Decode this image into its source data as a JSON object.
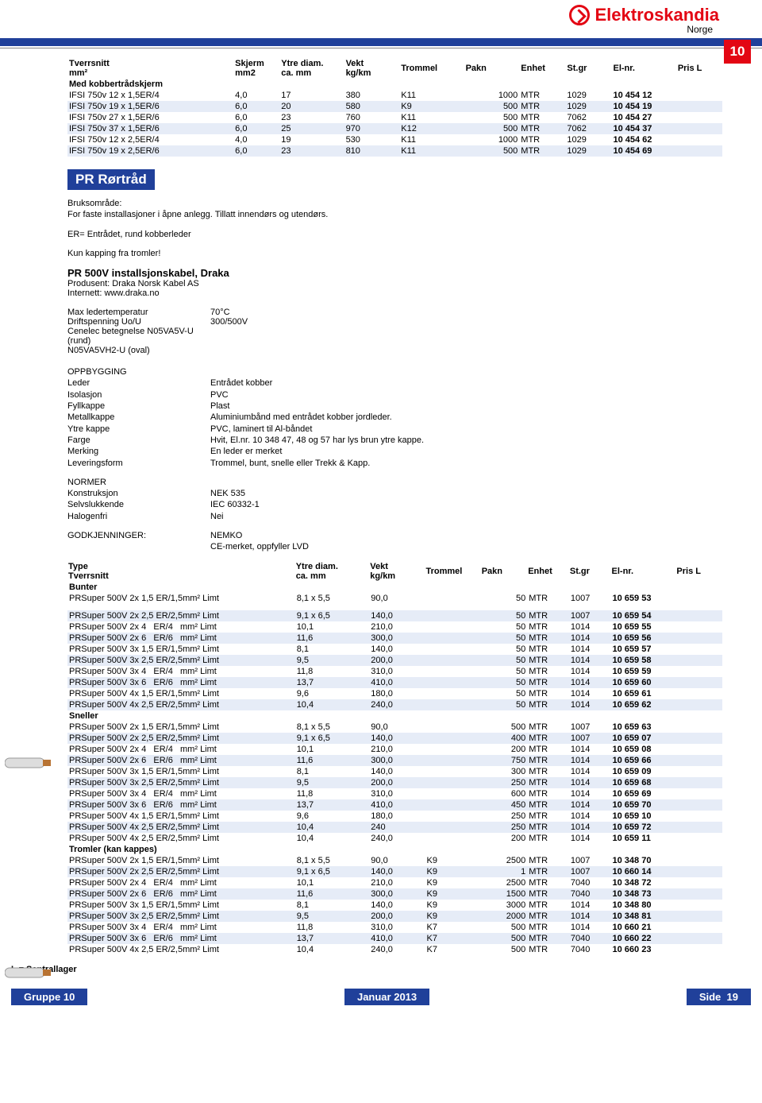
{
  "brand": {
    "name": "Elektroskandia",
    "region": "Norge"
  },
  "page_badge": "10",
  "footer": {
    "left": "Gruppe 10",
    "center": "Januar 2013",
    "right": "Side",
    "right_num": "19",
    "sentr": "L = Sentrallager"
  },
  "table1": {
    "headers": [
      "Tverrsnitt\nmm²",
      "Skjerm\nmm2",
      "Ytre diam.\nca. mm",
      "Vekt\nkg/km",
      "Trommel",
      "Pakn",
      "Enhet",
      "St.gr",
      "El-nr.",
      "Pris L"
    ],
    "section_label": "Med kobbertrådskjerm",
    "rows": [
      {
        "t": "IFSI 750v 12 x 1,5ER/4",
        "s": "4,0",
        "d": "17",
        "v": "380",
        "tr": "K11",
        "p": "1000",
        "e": "MTR",
        "sg": "1029",
        "el": "10 454 12",
        "alt": false
      },
      {
        "t": "IFSI 750v 19 x 1,5ER/6",
        "s": "6,0",
        "d": "20",
        "v": "580",
        "tr": "K9",
        "p": "500",
        "e": "MTR",
        "sg": "1029",
        "el": "10 454 19",
        "alt": true
      },
      {
        "t": "IFSI 750v 27 x 1,5ER/6",
        "s": "6,0",
        "d": "23",
        "v": "760",
        "tr": "K11",
        "p": "500",
        "e": "MTR",
        "sg": "7062",
        "el": "10 454 27",
        "alt": false
      },
      {
        "t": "IFSI 750v 37 x 1,5ER/6",
        "s": "6,0",
        "d": "25",
        "v": "970",
        "tr": "K12",
        "p": "500",
        "e": "MTR",
        "sg": "7062",
        "el": "10 454 37",
        "alt": true
      },
      {
        "t": "IFSI 750v 12 x 2,5ER/4",
        "s": "4,0",
        "d": "19",
        "v": "530",
        "tr": "K11",
        "p": "1000",
        "e": "MTR",
        "sg": "1029",
        "el": "10 454 62",
        "alt": false
      },
      {
        "t": "IFSI 750v 19 x 2,5ER/6",
        "s": "6,0",
        "d": "23",
        "v": "810",
        "tr": "K11",
        "p": "500",
        "e": "MTR",
        "sg": "1029",
        "el": "10 454 69",
        "alt": true
      }
    ]
  },
  "section2": {
    "title": "PR Rørtråd",
    "bruks_label": "Bruksområde:",
    "bruks_text": "For faste installasjoner i åpne anlegg. Tillatt innendørs og utendørs.",
    "er_text": "ER= Entrådet, rund kobberleder",
    "kapping": "Kun kapping fra tromler!",
    "sub_title": "PR 500V installsjonskabel, Draka",
    "prod_label": "Produsent:",
    "prod_val": "Draka Norsk Kabel AS",
    "int_label": "Internett:",
    "int_val": "www.draka.no",
    "specs": [
      {
        "l": "Max ledertemperatur",
        "v": "70°C"
      },
      {
        "l": "Driftspenning Uo/U",
        "v": "300/500V"
      },
      {
        "l": "Cenelec betegnelse N05VA5V-U (rund)",
        "v": ""
      },
      {
        "l": "N05VA5VH2-U (oval)",
        "v": ""
      }
    ],
    "oppbygging_label": "OPPBYGGING",
    "oppbygging": [
      {
        "l": "Leder",
        "v": "Entrådet kobber"
      },
      {
        "l": "Isolasjon",
        "v": "PVC"
      },
      {
        "l": "Fyllkappe",
        "v": "Plast"
      },
      {
        "l": "Metallkappe",
        "v": "Aluminiumbånd med entrådet kobber jordleder."
      },
      {
        "l": "Ytre kappe",
        "v": "PVC, laminert til Al-båndet"
      },
      {
        "l": "Farge",
        "v": "Hvit, El.nr. 10 348 47, 48 og 57 har lys brun ytre kappe."
      },
      {
        "l": "Merking",
        "v": "En leder er merket"
      },
      {
        "l": "Leveringsform",
        "v": "Trommel, bunt, snelle eller Trekk & Kapp."
      }
    ],
    "normer_label": "NORMER",
    "normer": [
      {
        "l": "Konstruksjon",
        "v": "NEK 535"
      },
      {
        "l": "Selvslukkende",
        "v": "IEC 60332-1"
      },
      {
        "l": "Halogenfri",
        "v": "Nei"
      }
    ],
    "godkj_label": "GODKJENNINGER:",
    "godkj": [
      {
        "l": "",
        "v": "NEMKO"
      },
      {
        "l": "",
        "v": "CE-merket, oppfyller LVD"
      }
    ]
  },
  "table2": {
    "headers": [
      "Type\nTverrsnitt",
      "Ytre diam.\nca. mm",
      "Vekt\nkg/km",
      "Trommel",
      "Pakn",
      "Enhet",
      "St.gr",
      "El-nr.",
      "Pris L"
    ],
    "groups": [
      {
        "label": "Bunter",
        "rows": [
          {
            "t": "PRSuper 500V 2x 1,5 ER/1,5mm² Limt",
            "d": "8,1 x 5,5",
            "v": "90,0",
            "tr": "",
            "p": "50",
            "e": "MTR",
            "sg": "1007",
            "el": "10 659 53",
            "alt": false
          }
        ]
      },
      {
        "label": "",
        "rows": [
          {
            "t": "PRSuper 500V 2x 2,5 ER/2,5mm² Limt",
            "d": "9,1 x 6,5",
            "v": "140,0",
            "tr": "",
            "p": "50",
            "e": "MTR",
            "sg": "1007",
            "el": "10 659 54",
            "alt": true
          },
          {
            "t": "PRSuper 500V 2x 4   ER/4   mm² Limt",
            "d": "10,1",
            "v": "210,0",
            "tr": "",
            "p": "50",
            "e": "MTR",
            "sg": "1014",
            "el": "10 659 55",
            "alt": false
          },
          {
            "t": "PRSuper 500V 2x 6   ER/6   mm² Limt",
            "d": "11,6",
            "v": "300,0",
            "tr": "",
            "p": "50",
            "e": "MTR",
            "sg": "1014",
            "el": "10 659 56",
            "alt": true
          },
          {
            "t": "PRSuper 500V 3x 1,5 ER/1,5mm² Limt",
            "d": "8,1",
            "v": "140,0",
            "tr": "",
            "p": "50",
            "e": "MTR",
            "sg": "1014",
            "el": "10 659 57",
            "alt": false
          },
          {
            "t": "PRSuper 500V 3x 2,5 ER/2,5mm² Limt",
            "d": "9,5",
            "v": "200,0",
            "tr": "",
            "p": "50",
            "e": "MTR",
            "sg": "1014",
            "el": "10 659 58",
            "alt": true
          },
          {
            "t": "PRSuper 500V 3x 4   ER/4   mm² Limt",
            "d": "11,8",
            "v": "310,0",
            "tr": "",
            "p": "50",
            "e": "MTR",
            "sg": "1014",
            "el": "10 659 59",
            "alt": false
          },
          {
            "t": "PRSuper 500V 3x 6   ER/6   mm² Limt",
            "d": "13,7",
            "v": "410,0",
            "tr": "",
            "p": "50",
            "e": "MTR",
            "sg": "1014",
            "el": "10 659 60",
            "alt": true
          },
          {
            "t": "PRSuper 500V 4x 1,5 ER/1,5mm² Limt",
            "d": "9,6",
            "v": "180,0",
            "tr": "",
            "p": "50",
            "e": "MTR",
            "sg": "1014",
            "el": "10 659 61",
            "alt": false
          },
          {
            "t": "PRSuper 500V 4x 2,5 ER/2,5mm² Limt",
            "d": "10,4",
            "v": "240,0",
            "tr": "",
            "p": "50",
            "e": "MTR",
            "sg": "1014",
            "el": "10 659 62",
            "alt": true
          }
        ]
      },
      {
        "label": "Sneller",
        "rows": [
          {
            "t": "PRSuper 500V 2x 1,5 ER/1,5mm² Limt",
            "d": "8,1 x 5,5",
            "v": "90,0",
            "tr": "",
            "p": "500",
            "e": "MTR",
            "sg": "1007",
            "el": "10 659 63",
            "alt": false
          },
          {
            "t": "PRSuper 500V 2x 2,5 ER/2,5mm² Limt",
            "d": "9,1 x 6,5",
            "v": "140,0",
            "tr": "",
            "p": "400",
            "e": "MTR",
            "sg": "1007",
            "el": "10 659 07",
            "alt": true
          },
          {
            "t": "PRSuper 500V 2x 4   ER/4   mm² Limt",
            "d": "10,1",
            "v": "210,0",
            "tr": "",
            "p": "200",
            "e": "MTR",
            "sg": "1014",
            "el": "10 659 08",
            "alt": false
          },
          {
            "t": "PRSuper 500V 2x 6   ER/6   mm² Limt",
            "d": "11,6",
            "v": "300,0",
            "tr": "",
            "p": "750",
            "e": "MTR",
            "sg": "1014",
            "el": "10 659 66",
            "alt": true
          },
          {
            "t": "PRSuper 500V 3x 1,5 ER/1,5mm² Limt",
            "d": "8,1",
            "v": "140,0",
            "tr": "",
            "p": "300",
            "e": "MTR",
            "sg": "1014",
            "el": "10 659 09",
            "alt": false
          },
          {
            "t": "PRSuper 500V 3x 2,5 ER/2,5mm² Limt",
            "d": "9,5",
            "v": "200,0",
            "tr": "",
            "p": "250",
            "e": "MTR",
            "sg": "1014",
            "el": "10 659 68",
            "alt": true
          },
          {
            "t": "PRSuper 500V 3x 4   ER/4   mm² Limt",
            "d": "11,8",
            "v": "310,0",
            "tr": "",
            "p": "600",
            "e": "MTR",
            "sg": "1014",
            "el": "10 659 69",
            "alt": false
          },
          {
            "t": "PRSuper 500V 3x 6   ER/6   mm² Limt",
            "d": "13,7",
            "v": "410,0",
            "tr": "",
            "p": "450",
            "e": "MTR",
            "sg": "1014",
            "el": "10 659 70",
            "alt": true
          },
          {
            "t": "PRSuper 500V 4x 1,5 ER/1,5mm² Limt",
            "d": "9,6",
            "v": "180,0",
            "tr": "",
            "p": "250",
            "e": "MTR",
            "sg": "1014",
            "el": "10 659 10",
            "alt": false
          },
          {
            "t": "PRSuper 500V 4x 2,5 ER/2,5mm² Limt",
            "d": "10,4",
            "v": "240",
            "tr": "",
            "p": "250",
            "e": "MTR",
            "sg": "1014",
            "el": "10 659 72",
            "alt": true
          },
          {
            "t": "PRSuper 500V 4x 2,5 ER/2,5mm² Limt",
            "d": "10,4",
            "v": "240,0",
            "tr": "",
            "p": "200",
            "e": "MTR",
            "sg": "1014",
            "el": "10 659 11",
            "alt": false
          }
        ]
      },
      {
        "label": "Tromler (kan kappes)",
        "rows": [
          {
            "t": "PRSuper 500V 2x 1,5 ER/1,5mm² Limt",
            "d": "8,1 x 5,5",
            "v": "90,0",
            "tr": "K9",
            "p": "2500",
            "e": "MTR",
            "sg": "1007",
            "el": "10 348 70",
            "alt": false
          },
          {
            "t": "PRSuper 500V 2x 2,5 ER/2,5mm² Limt",
            "d": "9,1 x 6,5",
            "v": "140,0",
            "tr": "K9",
            "p": "1",
            "e": "MTR",
            "sg": "1007",
            "el": "10 660 14",
            "alt": true
          },
          {
            "t": "PRSuper 500V 2x 4   ER/4   mm² Limt",
            "d": "10,1",
            "v": "210,0",
            "tr": "K9",
            "p": "2500",
            "e": "MTR",
            "sg": "7040",
            "el": "10 348 72",
            "alt": false
          },
          {
            "t": "PRSuper 500V 2x 6   ER/6   mm² Limt",
            "d": "11,6",
            "v": "300,0",
            "tr": "K9",
            "p": "1500",
            "e": "MTR",
            "sg": "7040",
            "el": "10 348 73",
            "alt": true
          },
          {
            "t": "PRSuper 500V 3x 1,5 ER/1,5mm² Limt",
            "d": "8,1",
            "v": "140,0",
            "tr": "K9",
            "p": "3000",
            "e": "MTR",
            "sg": "1014",
            "el": "10 348 80",
            "alt": false
          },
          {
            "t": "PRSuper 500V 3x 2,5 ER/2,5mm² Limt",
            "d": "9,5",
            "v": "200,0",
            "tr": "K9",
            "p": "2000",
            "e": "MTR",
            "sg": "1014",
            "el": "10 348 81",
            "alt": true
          },
          {
            "t": "PRSuper 500V 3x 4   ER/4   mm² Limt",
            "d": "11,8",
            "v": "310,0",
            "tr": "K7",
            "p": "500",
            "e": "MTR",
            "sg": "1014",
            "el": "10 660 21",
            "alt": false
          },
          {
            "t": "PRSuper 500V 3x 6   ER/6   mm² Limt",
            "d": "13,7",
            "v": "410,0",
            "tr": "K7",
            "p": "500",
            "e": "MTR",
            "sg": "7040",
            "el": "10 660 22",
            "alt": true
          },
          {
            "t": "PRSuper 500V 4x 2,5 ER/2,5mm² Limt",
            "d": "10,4",
            "v": "240,0",
            "tr": "K7",
            "p": "500",
            "e": "MTR",
            "sg": "7040",
            "el": "10 660 23",
            "alt": false
          }
        ]
      }
    ]
  },
  "styling": {
    "brand_color": "#e30613",
    "accent_color": "#20409a",
    "alt_row_color": "#e6ecf7",
    "font_size_body": 11,
    "font_size_section": 17
  },
  "col_widths": {
    "t1": {
      "type": 180,
      "s": 50,
      "d": 70,
      "v": 60,
      "tr": 70,
      "p": 60,
      "e": 50,
      "sg": 50,
      "el": 70,
      "pris": 50
    },
    "t2": {
      "type": 245,
      "d": 80,
      "v": 60,
      "tr": 60,
      "p": 50,
      "e": 45,
      "sg": 45,
      "el": 70,
      "pris": 50
    }
  }
}
